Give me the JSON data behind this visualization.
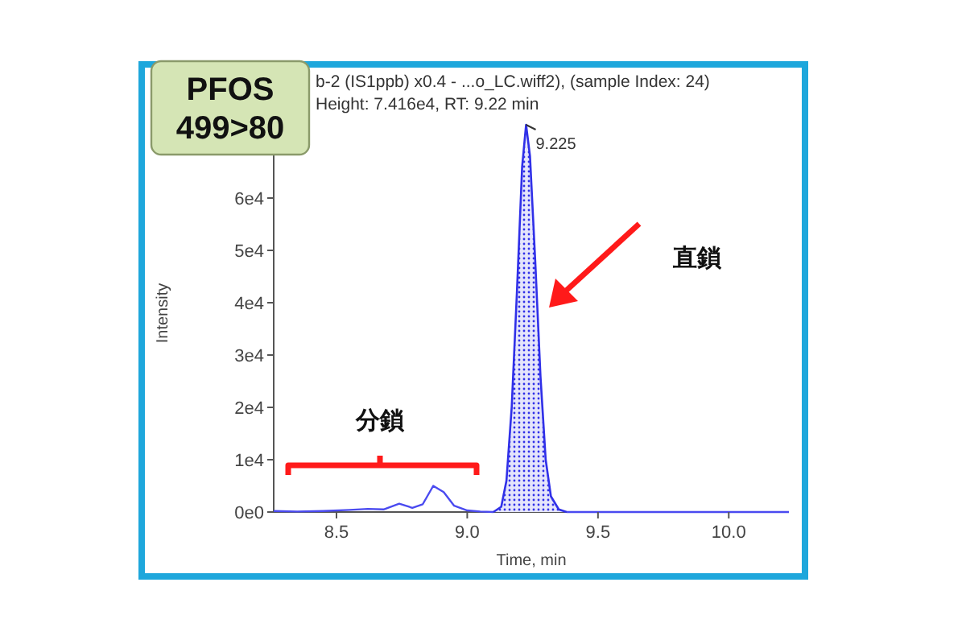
{
  "chart_data": {
    "type": "line",
    "title": "b-2 (IS1ppb)  x0.4 - ...o_LC.wiff2), (sample Index: 24)",
    "subtitle": "Height: 7.416e4, RT: 9.22 min",
    "xlabel": "Time, min",
    "ylabel": "Intensity",
    "xlim": [
      8.26,
      10.23
    ],
    "ylim": [
      0,
      76000
    ],
    "xticks": [
      8.5,
      {
        "value": 9,
        "label": "9.0"
      },
      9.5,
      {
        "value": 10,
        "label": "10.0"
      }
    ],
    "yticks": [
      {
        "value": 0,
        "label": "0e0"
      },
      {
        "value": 10000,
        "label": "1e4"
      },
      {
        "value": 20000,
        "label": "2e4"
      },
      {
        "value": 30000,
        "label": "3e4"
      },
      {
        "value": 40000,
        "label": "4e4"
      },
      {
        "value": 50000,
        "label": "5e4"
      },
      {
        "value": 60000,
        "label": "6e4"
      }
    ],
    "series": [
      {
        "type": "line",
        "color": "#4a4af0",
        "x": [
          8.26,
          8.35,
          8.45,
          8.55,
          8.62,
          8.68,
          8.74,
          8.79,
          8.83,
          8.87,
          8.91,
          8.95,
          9.0,
          9.05,
          9.1
        ],
        "values": [
          200,
          100,
          200,
          400,
          600,
          500,
          1600,
          800,
          1500,
          5000,
          3800,
          1200,
          300,
          100,
          0
        ]
      },
      {
        "type": "area",
        "color": "#3030e8",
        "x": [
          9.1,
          9.13,
          9.15,
          9.17,
          9.19,
          9.21,
          9.225,
          9.24,
          9.26,
          9.28,
          9.3,
          9.32,
          9.35,
          9.38
        ],
        "values": [
          0,
          1000,
          6000,
          20000,
          42000,
          66000,
          74000,
          68000,
          48000,
          26000,
          10000,
          3000,
          500,
          0
        ]
      },
      {
        "color": "#4a4af0",
        "x": [
          9.38,
          9.6,
          9.8,
          10.0,
          10.23
        ],
        "values": [
          0,
          0,
          0,
          0,
          0
        ]
      }
    ],
    "annotations": [
      "PFOS 499>80",
      {
        "text": "9.225",
        "x": 9.225,
        "y": 74000
      },
      "分鎖",
      "直鎖"
    ]
  }
}
